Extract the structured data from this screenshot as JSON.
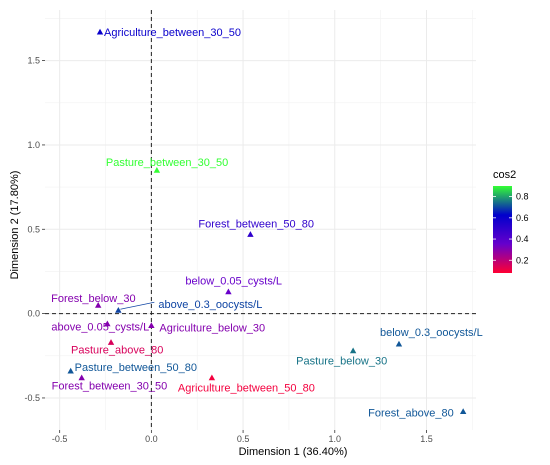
{
  "chart_data": {
    "type": "scatter",
    "xlabel": "Dimension 1 (36.40%)",
    "ylabel": "Dimension 2 (17.80%)",
    "xlim": [
      -0.58,
      1.77
    ],
    "ylim": [
      -0.69,
      1.8
    ],
    "xticks": [
      "-0.5",
      "0.0",
      "0.5",
      "1.0",
      "1.5"
    ],
    "xtick_values": [
      -0.5,
      0.0,
      0.5,
      1.0,
      1.5
    ],
    "yticks": [
      "-0.5",
      "0.0",
      "0.5",
      "1.0",
      "1.5"
    ],
    "ytick_values": [
      -0.5,
      0.0,
      0.5,
      1.0,
      1.5
    ],
    "reference_lines": {
      "x": 0,
      "y": 0,
      "style": "dashed"
    },
    "grid": true,
    "legend": {
      "title": "cos2",
      "position": "right",
      "ticks": [
        "0.2",
        "0.4",
        "0.6",
        "0.8"
      ],
      "tick_values": [
        0.2,
        0.4,
        0.6,
        0.8
      ],
      "range": [
        0.08,
        0.9
      ],
      "colors": [
        "#FF0033",
        "#6600CC",
        "#0000CC",
        "#33FF33"
      ]
    },
    "points": [
      {
        "label": "Agriculture_between_30_50",
        "x": -0.28,
        "y": 1.67,
        "cos2": 0.6
      },
      {
        "label": "Pasture_between_30_50",
        "x": 0.03,
        "y": 0.85,
        "cos2": 0.9
      },
      {
        "label": "Forest_between_50_80",
        "x": 0.54,
        "y": 0.47,
        "cos2": 0.5
      },
      {
        "label": "below_0.05_cysts/L",
        "x": 0.42,
        "y": 0.13,
        "cos2": 0.35
      },
      {
        "label": "Forest_below_30",
        "x": -0.29,
        "y": 0.05,
        "cos2": 0.3
      },
      {
        "label": "above_0.3_oocysts/L",
        "x": -0.18,
        "y": 0.02,
        "cos2": 0.7
      },
      {
        "label": "above_0.05_cysts/L",
        "x": -0.24,
        "y": -0.06,
        "cos2": 0.3
      },
      {
        "label": "Agriculture_below_30",
        "x": 0.0,
        "y": -0.07,
        "cos2": 0.3
      },
      {
        "label": "Pasture_above_80",
        "x": -0.22,
        "y": -0.17,
        "cos2": 0.15
      },
      {
        "label": "below_0.3_oocysts/L",
        "x": 1.35,
        "y": -0.18,
        "cos2": 0.72
      },
      {
        "label": "Pasture_below_30",
        "x": 1.1,
        "y": -0.22,
        "cos2": 0.75
      },
      {
        "label": "Pasture_between_50_80",
        "x": -0.44,
        "y": -0.34,
        "cos2": 0.72
      },
      {
        "label": "Forest_between_30_50",
        "x": -0.38,
        "y": -0.38,
        "cos2": 0.3
      },
      {
        "label": "Agriculture_between_50_80",
        "x": 0.33,
        "y": -0.38,
        "cos2": 0.1
      },
      {
        "label": "Forest_above_80",
        "x": 1.7,
        "y": -0.58,
        "cos2": 0.72
      }
    ]
  }
}
